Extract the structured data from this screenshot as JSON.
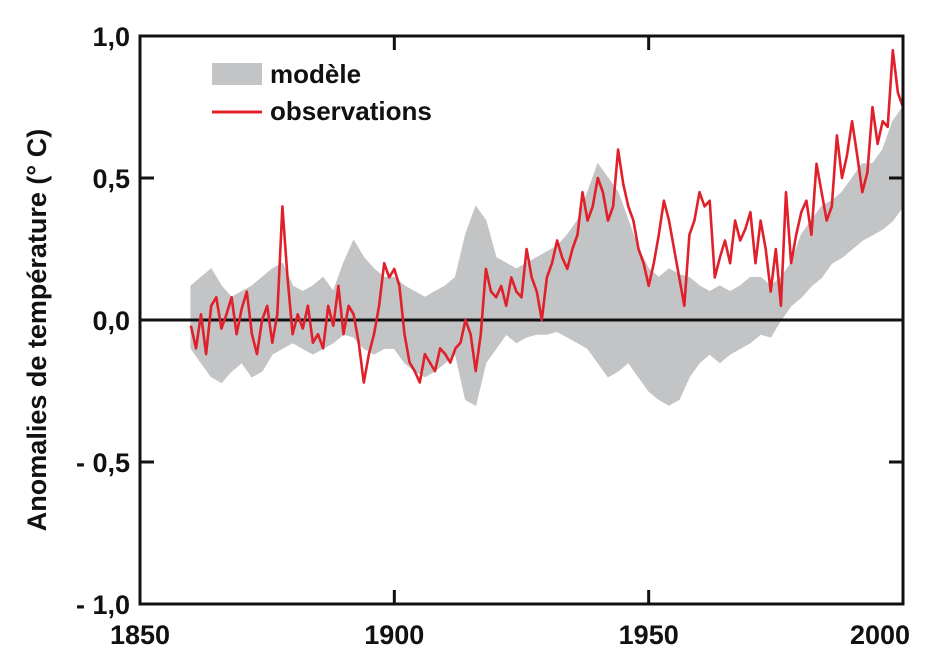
{
  "chart_data": {
    "type": "line",
    "title": "",
    "xlabel": "",
    "ylabel": "Anomalies de température (° C)",
    "xlim": [
      1850,
      2000
    ],
    "ylim": [
      -1.0,
      1.0
    ],
    "x_ticks": [
      1850,
      1900,
      1950,
      2000
    ],
    "x_tick_labels": [
      "1850",
      "1900",
      "1950",
      "2000"
    ],
    "y_ticks": [
      1.0,
      0.5,
      0.0,
      -0.5,
      -1.0
    ],
    "y_tick_labels": [
      "1,0",
      "0,5",
      "0,0",
      "- 0,5",
      "- 1,0"
    ],
    "grid": false,
    "legend_position": "top-left",
    "colors": {
      "modele": "#c3c4c6",
      "observations": "#e0202a",
      "axes": "#111111"
    },
    "series": [
      {
        "name": "modèle",
        "kind": "band",
        "x": [
          1860,
          1862,
          1864,
          1866,
          1868,
          1870,
          1872,
          1874,
          1876,
          1878,
          1880,
          1882,
          1884,
          1886,
          1888,
          1890,
          1892,
          1894,
          1896,
          1898,
          1900,
          1902,
          1904,
          1906,
          1908,
          1910,
          1912,
          1914,
          1916,
          1918,
          1920,
          1922,
          1924,
          1926,
          1928,
          1930,
          1932,
          1934,
          1936,
          1938,
          1940,
          1942,
          1944,
          1946,
          1948,
          1950,
          1952,
          1954,
          1956,
          1958,
          1960,
          1962,
          1964,
          1966,
          1968,
          1970,
          1972,
          1974,
          1976,
          1978,
          1980,
          1982,
          1984,
          1986,
          1988,
          1990,
          1992,
          1994,
          1996,
          1998,
          2000
        ],
        "upper": [
          0.12,
          0.15,
          0.18,
          0.12,
          0.08,
          0.1,
          0.12,
          0.15,
          0.18,
          0.2,
          0.12,
          0.1,
          0.12,
          0.15,
          0.1,
          0.2,
          0.28,
          0.22,
          0.18,
          0.15,
          0.15,
          0.12,
          0.1,
          0.08,
          0.1,
          0.12,
          0.15,
          0.3,
          0.4,
          0.35,
          0.22,
          0.2,
          0.18,
          0.2,
          0.22,
          0.24,
          0.26,
          0.3,
          0.35,
          0.45,
          0.55,
          0.5,
          0.45,
          0.35,
          0.25,
          0.18,
          0.15,
          0.18,
          0.16,
          0.15,
          0.12,
          0.1,
          0.12,
          0.1,
          0.12,
          0.15,
          0.15,
          0.12,
          0.15,
          0.2,
          0.3,
          0.35,
          0.4,
          0.42,
          0.45,
          0.5,
          0.55,
          0.55,
          0.6,
          0.7,
          0.75
        ],
        "lower": [
          -0.1,
          -0.15,
          -0.2,
          -0.22,
          -0.18,
          -0.15,
          -0.2,
          -0.18,
          -0.12,
          -0.1,
          -0.08,
          -0.1,
          -0.12,
          -0.1,
          -0.08,
          -0.05,
          -0.06,
          -0.1,
          -0.12,
          -0.1,
          -0.1,
          -0.15,
          -0.18,
          -0.2,
          -0.18,
          -0.15,
          -0.12,
          -0.28,
          -0.3,
          -0.15,
          -0.1,
          -0.05,
          -0.08,
          -0.06,
          -0.05,
          -0.05,
          -0.04,
          -0.06,
          -0.08,
          -0.1,
          -0.15,
          -0.2,
          -0.18,
          -0.15,
          -0.2,
          -0.25,
          -0.28,
          -0.3,
          -0.28,
          -0.2,
          -0.15,
          -0.12,
          -0.15,
          -0.12,
          -0.1,
          -0.08,
          -0.05,
          -0.06,
          0.0,
          0.05,
          0.08,
          0.12,
          0.15,
          0.2,
          0.22,
          0.25,
          0.28,
          0.3,
          0.32,
          0.35,
          0.4
        ]
      },
      {
        "name": "observations",
        "kind": "line",
        "x": [
          1860,
          1861,
          1862,
          1863,
          1864,
          1865,
          1866,
          1867,
          1868,
          1869,
          1870,
          1871,
          1872,
          1873,
          1874,
          1875,
          1876,
          1877,
          1878,
          1879,
          1880,
          1881,
          1882,
          1883,
          1884,
          1885,
          1886,
          1887,
          1888,
          1889,
          1890,
          1891,
          1892,
          1893,
          1894,
          1895,
          1896,
          1897,
          1898,
          1899,
          1900,
          1901,
          1902,
          1903,
          1904,
          1905,
          1906,
          1907,
          1908,
          1909,
          1910,
          1911,
          1912,
          1913,
          1914,
          1915,
          1916,
          1917,
          1918,
          1919,
          1920,
          1921,
          1922,
          1923,
          1924,
          1925,
          1926,
          1927,
          1928,
          1929,
          1930,
          1931,
          1932,
          1933,
          1934,
          1935,
          1936,
          1937,
          1938,
          1939,
          1940,
          1941,
          1942,
          1943,
          1944,
          1945,
          1946,
          1947,
          1948,
          1949,
          1950,
          1951,
          1952,
          1953,
          1954,
          1955,
          1956,
          1957,
          1958,
          1959,
          1960,
          1961,
          1962,
          1963,
          1964,
          1965,
          1966,
          1967,
          1968,
          1969,
          1970,
          1971,
          1972,
          1973,
          1974,
          1975,
          1976,
          1977,
          1978,
          1979,
          1980,
          1981,
          1982,
          1983,
          1984,
          1985,
          1986,
          1987,
          1988,
          1989,
          1990,
          1991,
          1992,
          1993,
          1994,
          1995,
          1996,
          1997,
          1998,
          1999,
          2000
        ],
        "y": [
          -0.02,
          -0.1,
          0.02,
          -0.12,
          0.05,
          0.08,
          -0.03,
          0.02,
          0.08,
          -0.05,
          0.04,
          0.1,
          -0.05,
          -0.12,
          0.0,
          0.05,
          -0.08,
          0.02,
          0.4,
          0.15,
          -0.05,
          0.02,
          -0.03,
          0.05,
          -0.08,
          -0.05,
          -0.1,
          0.05,
          -0.02,
          0.12,
          -0.05,
          0.05,
          0.02,
          -0.08,
          -0.22,
          -0.12,
          -0.05,
          0.05,
          0.2,
          0.15,
          0.18,
          0.12,
          -0.05,
          -0.15,
          -0.18,
          -0.22,
          -0.12,
          -0.15,
          -0.18,
          -0.1,
          -0.12,
          -0.15,
          -0.1,
          -0.08,
          0.0,
          -0.05,
          -0.18,
          -0.05,
          0.18,
          0.1,
          0.08,
          0.12,
          0.05,
          0.15,
          0.1,
          0.08,
          0.25,
          0.15,
          0.1,
          0.0,
          0.15,
          0.2,
          0.28,
          0.22,
          0.18,
          0.25,
          0.3,
          0.45,
          0.35,
          0.4,
          0.5,
          0.45,
          0.35,
          0.4,
          0.6,
          0.48,
          0.4,
          0.35,
          0.25,
          0.2,
          0.12,
          0.2,
          0.3,
          0.42,
          0.35,
          0.25,
          0.15,
          0.05,
          0.3,
          0.35,
          0.45,
          0.4,
          0.42,
          0.15,
          0.22,
          0.28,
          0.2,
          0.35,
          0.28,
          0.32,
          0.38,
          0.2,
          0.35,
          0.25,
          0.1,
          0.25,
          0.05,
          0.45,
          0.2,
          0.3,
          0.38,
          0.42,
          0.3,
          0.55,
          0.45,
          0.35,
          0.4,
          0.65,
          0.5,
          0.58,
          0.7,
          0.58,
          0.45,
          0.52,
          0.75,
          0.62,
          0.7,
          0.68,
          0.95,
          0.8,
          0.75
        ]
      }
    ]
  }
}
